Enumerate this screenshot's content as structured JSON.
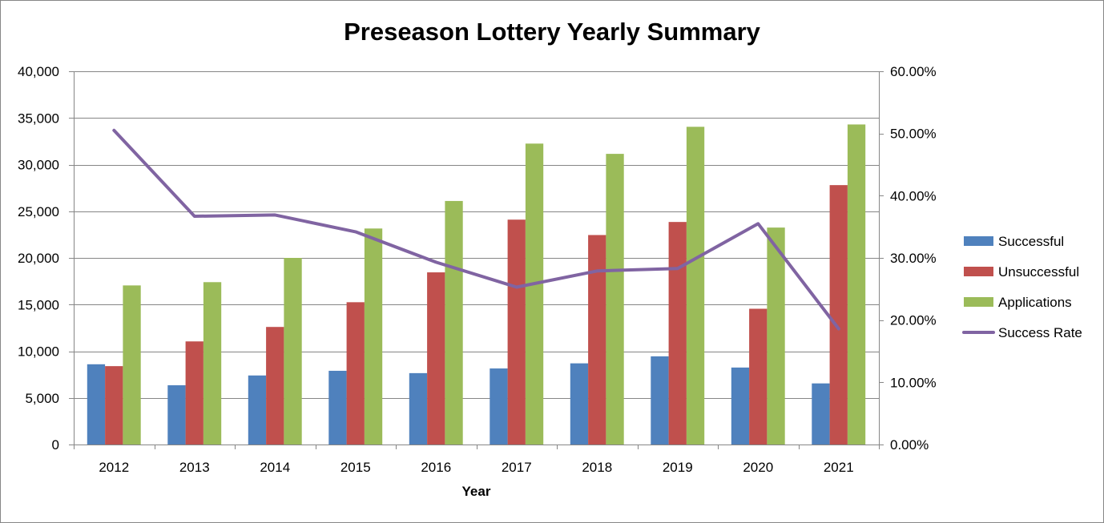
{
  "chart_data": {
    "type": "bar",
    "title": "Preseason Lottery Yearly Summary",
    "xlabel": "Year",
    "ylabel": "",
    "y2label": "",
    "categories": [
      "2012",
      "2013",
      "2014",
      "2015",
      "2016",
      "2017",
      "2018",
      "2019",
      "2020",
      "2021"
    ],
    "ylim": [
      0,
      40000
    ],
    "y_ticks": [
      0,
      5000,
      10000,
      15000,
      20000,
      25000,
      30000,
      35000,
      40000
    ],
    "y_tick_labels": [
      "0",
      "5,000",
      "10,000",
      "15,000",
      "20,000",
      "25,000",
      "30,000",
      "35,000",
      "40,000"
    ],
    "y2lim": [
      0,
      60
    ],
    "y2_ticks": [
      0,
      10,
      20,
      30,
      40,
      50,
      60
    ],
    "y2_tick_labels": [
      "0.00%",
      "10.00%",
      "20.00%",
      "30.00%",
      "40.00%",
      "50.00%",
      "60.00%"
    ],
    "grid": true,
    "legend_position": "right",
    "series": [
      {
        "name": "Successful",
        "type": "bar",
        "axis": "left",
        "color": "#4F81BD",
        "values": [
          8600,
          6350,
          7400,
          7900,
          7650,
          8150,
          8700,
          9450,
          8250,
          6550
        ]
      },
      {
        "name": "Unsuccessful",
        "type": "bar",
        "axis": "left",
        "color": "#C0504D",
        "values": [
          8400,
          11050,
          12600,
          15250,
          18450,
          24100,
          22450,
          23850,
          14550,
          27800
        ]
      },
      {
        "name": "Applications",
        "type": "bar",
        "axis": "left",
        "color": "#9BBB59",
        "values": [
          17050,
          17400,
          20000,
          23150,
          26100,
          32250,
          31150,
          34050,
          23250,
          34300
        ]
      },
      {
        "name": "Success Rate",
        "type": "line",
        "axis": "right",
        "color": "#8064A2",
        "values": [
          50.5,
          36.7,
          36.9,
          34.2,
          29.3,
          25.3,
          27.9,
          28.3,
          35.5,
          18.6
        ]
      }
    ]
  }
}
